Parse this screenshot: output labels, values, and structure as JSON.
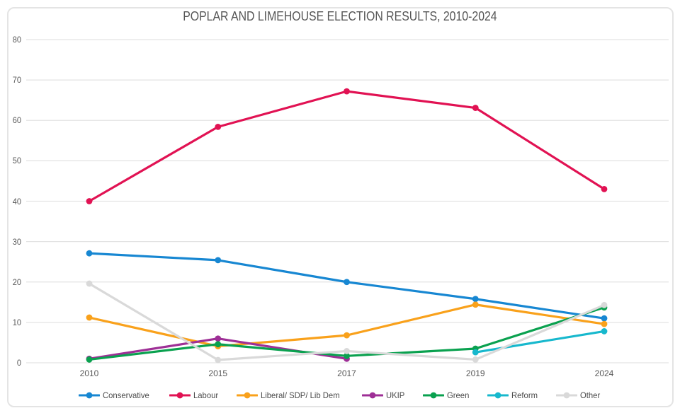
{
  "title": "POPLAR AND LIMEHOUSE ELECTION RESULTS, 2010-2024",
  "chart_data": {
    "type": "line",
    "title": "POPLAR AND LIMEHOUSE ELECTION RESULTS, 2010-2024",
    "categories": [
      "2010",
      "2015",
      "2017",
      "2019",
      "2024"
    ],
    "series": [
      {
        "name": "Conservative",
        "color": "#1787d2",
        "values": [
          27.1,
          25.4,
          20.0,
          15.8,
          11.0
        ]
      },
      {
        "name": "Labour",
        "color": "#e11253",
        "values": [
          40.0,
          58.4,
          67.2,
          63.1,
          43.0
        ]
      },
      {
        "name": "Liberal/ SDP/ Lib Dem",
        "color": "#f9a11b",
        "values": [
          11.2,
          4.1,
          6.8,
          14.4,
          9.6
        ]
      },
      {
        "name": "UKIP",
        "color": "#9e2f96",
        "values": [
          1.0,
          6.0,
          1.0,
          null,
          null
        ]
      },
      {
        "name": "Green",
        "color": "#0aa14f",
        "values": [
          0.8,
          4.6,
          1.7,
          3.5,
          13.7
        ]
      },
      {
        "name": "Reform",
        "color": "#17b8cd",
        "values": [
          null,
          null,
          null,
          2.6,
          7.8
        ]
      },
      {
        "name": "Other",
        "color": "#d9d9d9",
        "values": [
          19.6,
          0.7,
          2.9,
          0.8,
          14.3
        ]
      }
    ],
    "yticks": [
      0,
      10,
      20,
      30,
      40,
      50,
      60,
      70,
      80
    ],
    "ylim": [
      0,
      80
    ],
    "xlabel": "",
    "ylabel": "",
    "grid": true,
    "gridline_color": "#e3e3e3",
    "legend_position": "bottom"
  }
}
